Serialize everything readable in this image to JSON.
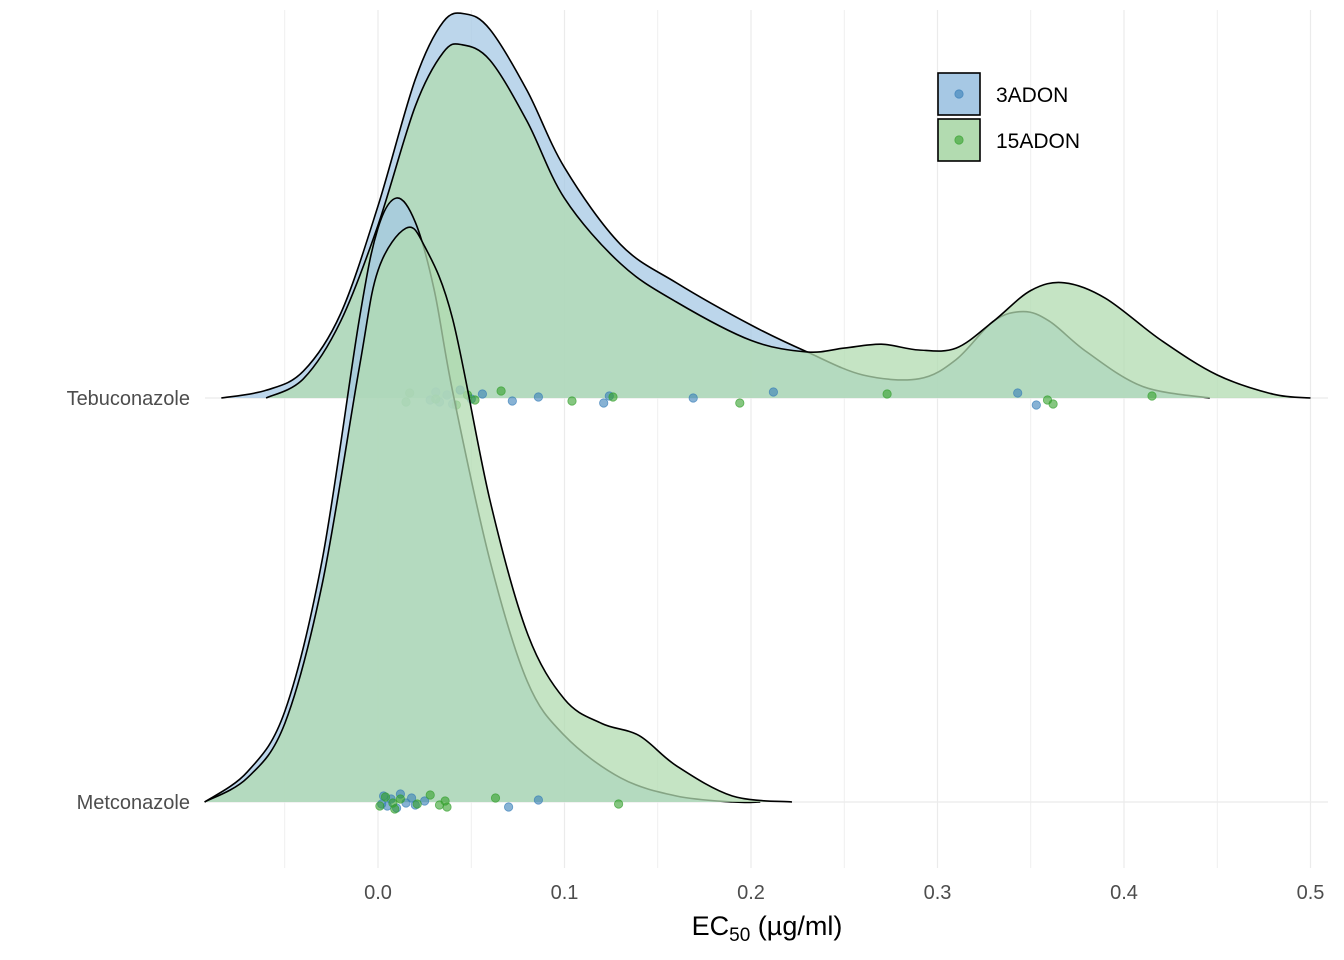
{
  "chart_data": {
    "type": "ridgeline",
    "x_axis": {
      "title_main": "EC",
      "title_sub": "50",
      "title_rest": " (µg/ml)",
      "range": [
        -0.05,
        0.5
      ],
      "tick_values": [
        0.0,
        0.1,
        0.2,
        0.3,
        0.4,
        0.5
      ],
      "tick_labels": [
        "0.0",
        "0.1",
        "0.2",
        "0.3",
        "0.4",
        "0.5"
      ]
    },
    "categories": [
      "Tebuconazole",
      "Metconazole"
    ],
    "grid": true,
    "legend": {
      "position": "top-right"
    },
    "series": [
      {
        "name": "3ADON",
        "fill": "#a6c8e4",
        "point_color": "#377eb8",
        "densities": {
          "Tebuconazole": {
            "x": [
              -0.084,
              -0.06,
              -0.04,
              -0.02,
              0.0,
              0.02,
              0.035,
              0.047,
              0.06,
              0.08,
              0.1,
              0.13,
              0.16,
              0.2,
              0.23,
              0.26,
              0.29,
              0.31,
              0.33,
              0.346,
              0.36,
              0.38,
              0.41,
              0.446
            ],
            "y": [
              0.0,
              0.02,
              0.07,
              0.22,
              0.5,
              0.83,
              0.98,
              1.0,
              0.96,
              0.8,
              0.6,
              0.4,
              0.3,
              0.19,
              0.12,
              0.06,
              0.05,
              0.1,
              0.2,
              0.225,
              0.2,
              0.12,
              0.03,
              0.0
            ]
          },
          "Metconazole": {
            "x": [
              -0.093,
              -0.07,
              -0.05,
              -0.03,
              -0.01,
              0.0,
              0.01,
              0.02,
              0.03,
              0.04,
              0.06,
              0.08,
              0.1,
              0.13,
              0.16,
              0.19,
              0.205
            ],
            "y": [
              0.0,
              0.05,
              0.15,
              0.4,
              0.8,
              0.95,
              1.0,
              0.96,
              0.85,
              0.68,
              0.4,
              0.2,
              0.11,
              0.04,
              0.01,
              0.0,
              0.0
            ]
          }
        },
        "points": {
          "Tebuconazole": [
            0.028,
            0.031,
            0.033,
            0.037,
            0.04,
            0.044,
            0.05,
            0.056,
            0.072,
            0.086,
            0.121,
            0.124,
            0.169,
            0.212,
            0.343,
            0.353
          ],
          "Metconazole": [
            0.002,
            0.003,
            0.005,
            0.007,
            0.01,
            0.012,
            0.015,
            0.018,
            0.02,
            0.025,
            0.07,
            0.086
          ]
        }
      },
      {
        "name": "15ADON",
        "fill": "#b2dbb0",
        "point_color": "#33a02c",
        "densities": {
          "Tebuconazole": {
            "x": [
              -0.06,
              -0.04,
              -0.02,
              0.0,
              0.02,
              0.035,
              0.045,
              0.06,
              0.08,
              0.1,
              0.13,
              0.16,
              0.2,
              0.23,
              0.25,
              0.27,
              0.29,
              0.31,
              0.33,
              0.35,
              0.368,
              0.39,
              0.42,
              0.45,
              0.48,
              0.5
            ],
            "y": [
              0.0,
              0.05,
              0.2,
              0.45,
              0.76,
              0.9,
              0.92,
              0.88,
              0.72,
              0.52,
              0.35,
              0.25,
              0.15,
              0.12,
              0.13,
              0.14,
              0.125,
              0.13,
              0.2,
              0.28,
              0.3,
              0.26,
              0.15,
              0.06,
              0.01,
              0.0
            ]
          },
          "Metconazole": {
            "x": [
              -0.093,
              -0.07,
              -0.05,
              -0.03,
              -0.01,
              0.0,
              0.015,
              0.025,
              0.04,
              0.06,
              0.08,
              0.1,
              0.12,
              0.14,
              0.16,
              0.19,
              0.222
            ],
            "y": [
              0.0,
              0.04,
              0.13,
              0.36,
              0.72,
              0.88,
              0.95,
              0.92,
              0.8,
              0.5,
              0.28,
              0.17,
              0.13,
              0.11,
              0.06,
              0.01,
              0.0
            ]
          }
        },
        "points": {
          "Tebuconazole": [
            0.015,
            0.017,
            0.031,
            0.042,
            0.048,
            0.052,
            0.066,
            0.104,
            0.126,
            0.194,
            0.273,
            0.359,
            0.362,
            0.415
          ],
          "Metconazole": [
            0.001,
            0.004,
            0.008,
            0.009,
            0.012,
            0.021,
            0.028,
            0.033,
            0.036,
            0.037,
            0.063,
            0.129
          ]
        }
      }
    ]
  }
}
